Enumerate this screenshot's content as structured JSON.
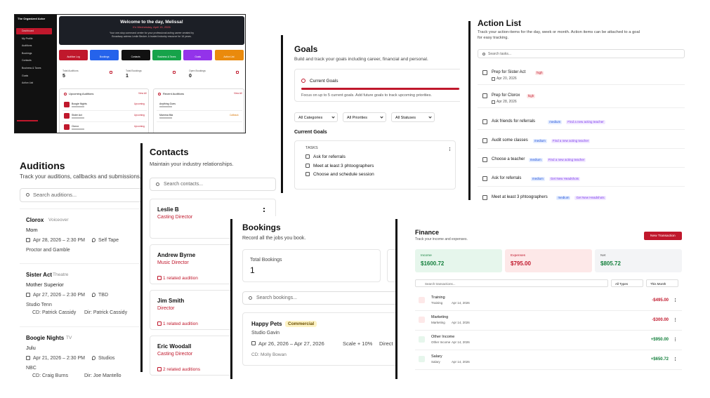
{
  "dashboard": {
    "brand": "The Organized Actor",
    "nav": [
      "Dashboard",
      "My Profile",
      "Auditions",
      "Bookings",
      "Contacts",
      "Business & Taxes",
      "Goals",
      "Action List"
    ],
    "welcome": "Welcome to the day, Melissa!",
    "date": "It's Wednesday, April 15, 2026",
    "intro": [
      "Your one-stop command center for your professional acting career created by",
      "Broadway actress Leslie Becker. A trusted industry resource for 16 years."
    ],
    "actions": [
      "Audition Log",
      "Bookings",
      "Contacts",
      "Business & Taxes",
      "Goals",
      "Action List"
    ],
    "stats": [
      {
        "label": "Total Auditions",
        "value": "5"
      },
      {
        "label": "Total Bookings",
        "value": "1"
      },
      {
        "label": "Open Bookings",
        "value": "0"
      }
    ],
    "upcoming_title": "Upcoming Auditions",
    "recent_title": "Recent Auditions",
    "view_all": "View All",
    "upcoming": [
      {
        "name": "Boogie Nights",
        "status": "Upcoming"
      },
      {
        "name": "Sister Act",
        "status": "Upcoming"
      },
      {
        "name": "Clorox",
        "status": "Upcoming"
      }
    ],
    "recent": [
      {
        "name": "Anything Goes",
        "status": ""
      },
      {
        "name": "Mamma Mia",
        "status": "Callback"
      }
    ]
  },
  "auditions": {
    "title": "Auditions",
    "subtitle": "Track your auditions, callbacks and submissions.",
    "search": "Search auditions...",
    "items": [
      {
        "name": "Clorox",
        "type": "Voiceover",
        "role": "Mom",
        "date": "Apr 28, 2026 – 2:30 PM",
        "location": "Self Tape",
        "company": "Proctor and Gamble"
      },
      {
        "name": "Sister Act",
        "type": "Theatre",
        "role": "Mother Superior",
        "date": "Apr 27, 2026 – 2:30 PM",
        "location": "TBD",
        "company": "Studio Tenn",
        "cd": "CD: Patrick Cassidy",
        "dir": "Dir: Patrick Cassidy"
      },
      {
        "name": "Boogie Nights",
        "type": "TV",
        "role": "Julu",
        "date": "Apr 21, 2026 – 2:30 PM",
        "location": "Studios",
        "company": "NBC",
        "cd": "CD: Craig Burns",
        "dir": "Dir: Joe Mantello"
      }
    ]
  },
  "contacts": {
    "title": "Contacts",
    "subtitle": "Maintain your industry relationships.",
    "search": "Search contacts...",
    "items": [
      {
        "name": "Leslie B",
        "role": "Casting Director"
      },
      {
        "name": "Andrew Byrne",
        "role": "Music Director",
        "related": "1 related audition"
      },
      {
        "name": "Jim Smith",
        "role": "Director",
        "related": "1 related audition"
      },
      {
        "name": "Eric Woodall",
        "role": "Casting Director",
        "related": "2 related auditions"
      }
    ]
  },
  "goals": {
    "title": "Goals",
    "subtitle": "Build and track your goals including career, financial and personal.",
    "current_title": "Current Goals",
    "current_text": "Focus on up to 5 current goals. Add future goals to track upcoming priorities.",
    "filters": [
      "All Categories",
      "All Priorities",
      "All Statuses"
    ],
    "section": "Current Goals",
    "tasks_label": "TASKS",
    "tasks": [
      "Ask for referrals",
      "Meet at least 3 phtoographers",
      "Choose and schedule session"
    ]
  },
  "action_list": {
    "title": "Action List",
    "subtitle": [
      "Track your action-items for the day, week or month. Action items can be attached to a goal",
      "for easy tracking."
    ],
    "search": "Search tasks...",
    "items": [
      {
        "name": "Prep for Sister Act",
        "priority": "high",
        "date": "Apr 20, 2026"
      },
      {
        "name": "Prep for Clorox",
        "priority": "high",
        "date": "Apr 28, 2026"
      },
      {
        "name": "Ask friends for referrals",
        "priority": "medium",
        "goal": "Find a new acting teacher"
      },
      {
        "name": "Audit some classes",
        "priority": "medium",
        "goal": "Find a new acting teacher"
      },
      {
        "name": "Choose a teacher",
        "priority": "medium",
        "goal": "Find a new acting teacher"
      },
      {
        "name": "Ask for referrals",
        "priority": "medium",
        "goal": "Get New Headshots"
      },
      {
        "name": "Meet at least 3 phtoographers",
        "priority": "medium",
        "goal": "Get New Headshots"
      }
    ]
  },
  "bookings": {
    "title": "Bookings",
    "subtitle": "Record all the jobs you book.",
    "total_label": "Total Bookings",
    "total": "1",
    "search": "Search bookings...",
    "item": {
      "name": "Happy Pets",
      "type": "Commercial",
      "company": "Studio Gavin",
      "dates": "Apr 26, 2026 – Apr 27, 2026",
      "rate": "Scale + 10%",
      "kind": "Direct",
      "cd": "CD: Molly Bowan"
    }
  },
  "finance": {
    "title": "Finance",
    "subtitle": "Track your income and expenses.",
    "button": "New Transaction",
    "cards": [
      {
        "label": "Income",
        "value": "$1600.72"
      },
      {
        "label": "Expenses",
        "value": "$795.00"
      },
      {
        "label": "Net",
        "value": "$805.72"
      }
    ],
    "search": "Search transactions...",
    "filters": [
      "All Types",
      "This Month"
    ],
    "transactions": [
      {
        "name": "Training",
        "category": "Training",
        "date": "Apr 14, 2026",
        "amount": "-$495.00"
      },
      {
        "name": "Marketing",
        "category": "Marketing",
        "date": "Apr 14, 2026",
        "amount": "-$300.00"
      },
      {
        "name": "Other Income",
        "category": "Other Income",
        "date": "Apr 14, 2026",
        "amount": "+$950.00"
      },
      {
        "name": "Salary",
        "category": "Salary",
        "date": "Apr 14, 2026",
        "amount": "+$650.72"
      }
    ]
  }
}
